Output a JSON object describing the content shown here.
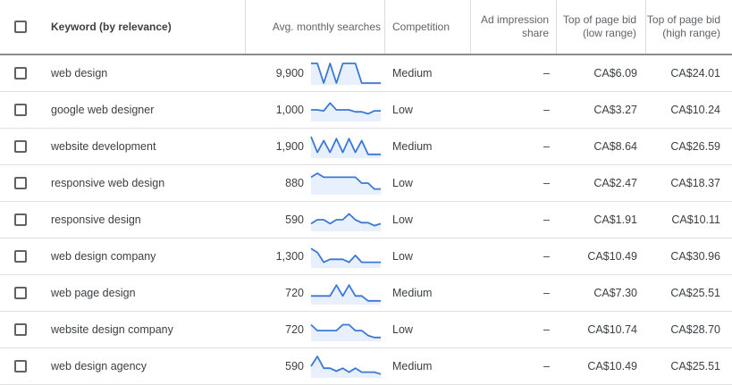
{
  "header": {
    "keyword": "Keyword (by relevance)",
    "avg_monthly_searches": "Avg. monthly searches",
    "competition": "Competition",
    "ad_impression_share": "Ad impression share",
    "top_bid_low": "Top of page bid (low range)",
    "top_bid_high": "Top of page bid (high range)"
  },
  "colors": {
    "sparkline_stroke": "#3b78d6",
    "sparkline_fill": "#e8f0fe"
  },
  "rows": [
    {
      "keyword": "web design",
      "avg": "9,900",
      "trend": [
        1,
        1,
        0,
        1,
        0,
        1,
        1,
        1,
        0,
        0,
        0,
        0
      ],
      "competition": "Medium",
      "ad_share": "–",
      "low": "CA$6.09",
      "high": "CA$24.01"
    },
    {
      "keyword": "google web designer",
      "avg": "1,000",
      "trend": [
        0.5,
        0.5,
        0.45,
        0.85,
        0.5,
        0.5,
        0.5,
        0.4,
        0.4,
        0.3,
        0.45,
        0.45
      ],
      "competition": "Low",
      "ad_share": "–",
      "low": "CA$3.27",
      "high": "CA$10.24"
    },
    {
      "keyword": "website development",
      "avg": "1,900",
      "trend": [
        1,
        0.2,
        0.8,
        0.2,
        0.9,
        0.2,
        0.9,
        0.2,
        0.8,
        0.1,
        0.1,
        0.1
      ],
      "competition": "Medium",
      "ad_share": "–",
      "low": "CA$8.64",
      "high": "CA$26.59"
    },
    {
      "keyword": "responsive web design",
      "avg": "880",
      "trend": [
        0.8,
        1,
        0.8,
        0.8,
        0.8,
        0.8,
        0.8,
        0.8,
        0.5,
        0.5,
        0.2,
        0.2
      ],
      "competition": "Low",
      "ad_share": "–",
      "low": "CA$2.47",
      "high": "CA$18.37"
    },
    {
      "keyword": "responsive design",
      "avg": "590",
      "trend": [
        0.3,
        0.5,
        0.5,
        0.3,
        0.5,
        0.5,
        0.8,
        0.5,
        0.35,
        0.35,
        0.2,
        0.3
      ],
      "competition": "Low",
      "ad_share": "–",
      "low": "CA$1.91",
      "high": "CA$10.11"
    },
    {
      "keyword": "web design company",
      "avg": "1,300",
      "trend": [
        0.9,
        0.7,
        0.2,
        0.35,
        0.35,
        0.35,
        0.2,
        0.55,
        0.2,
        0.2,
        0.2,
        0.2
      ],
      "competition": "Low",
      "ad_share": "–",
      "low": "CA$10.49",
      "high": "CA$30.96"
    },
    {
      "keyword": "web page design",
      "avg": "720",
      "trend": [
        0.35,
        0.35,
        0.35,
        0.35,
        0.9,
        0.35,
        0.9,
        0.35,
        0.35,
        0.1,
        0.1,
        0.1
      ],
      "competition": "Medium",
      "ad_share": "–",
      "low": "CA$7.30",
      "high": "CA$25.51"
    },
    {
      "keyword": "website design company",
      "avg": "720",
      "trend": [
        0.75,
        0.45,
        0.45,
        0.45,
        0.45,
        0.75,
        0.75,
        0.45,
        0.45,
        0.2,
        0.1,
        0.1
      ],
      "competition": "Low",
      "ad_share": "–",
      "low": "CA$10.74",
      "high": "CA$28.70"
    },
    {
      "keyword": "web design agency",
      "avg": "590",
      "trend": [
        0.5,
        1,
        0.4,
        0.4,
        0.25,
        0.4,
        0.2,
        0.4,
        0.2,
        0.2,
        0.2,
        0.1
      ],
      "competition": "Medium",
      "ad_share": "–",
      "low": "CA$10.49",
      "high": "CA$25.51"
    }
  ]
}
